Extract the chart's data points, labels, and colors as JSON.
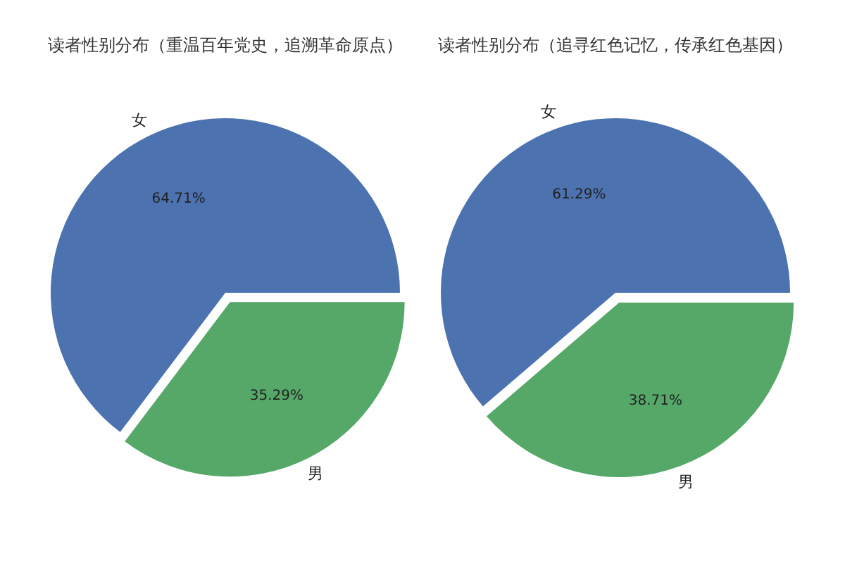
{
  "chart_data": [
    {
      "type": "pie",
      "title": "读者性别分布（重温百年党史，追溯革命原点）",
      "categories": [
        "女",
        "男"
      ],
      "values": [
        64.71,
        35.29
      ],
      "colors": [
        "#4c72b0",
        "#55a868"
      ],
      "value_labels": [
        "64.71%",
        "35.29%"
      ]
    },
    {
      "type": "pie",
      "title": "读者性别分布（追寻红色记忆，传承红色基因）",
      "categories": [
        "女",
        "男"
      ],
      "values": [
        61.29,
        38.71
      ],
      "colors": [
        "#4c72b0",
        "#55a868"
      ],
      "value_labels": [
        "61.29%",
        "38.71%"
      ]
    }
  ]
}
